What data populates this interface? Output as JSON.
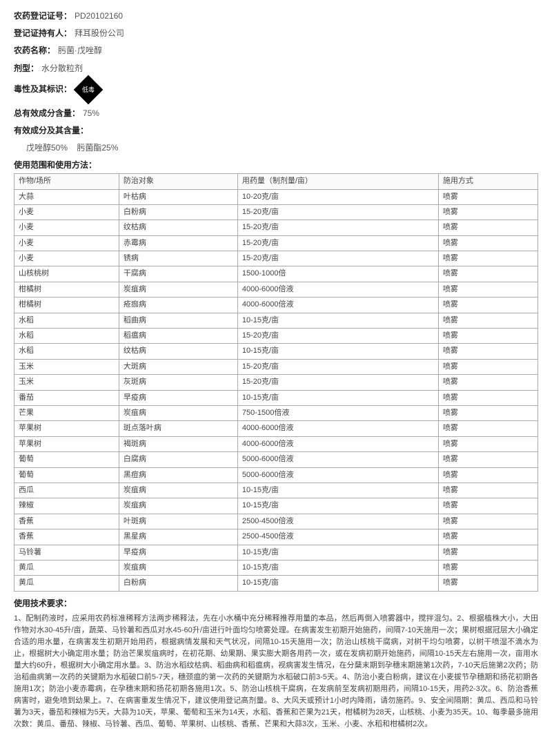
{
  "registration": {
    "reg_no_label": "农药登记证号：",
    "reg_no": "PD20102160",
    "holder_label": "登记证持有人：",
    "holder": "拜耳股份公司",
    "name_label": "农药名称：",
    "name": "肟菌·戊唑醇",
    "form_label": "剂型：",
    "form": "水分散粒剂",
    "toxicity_label": "毒性及其标识：",
    "hazard_text": "低毒",
    "total_label": "总有效成分含量：",
    "total": "75%",
    "ingredients_label": "有效成分及其含量：",
    "ingredient1": "戊唑醇50%",
    "ingredient2": "肟菌酯25%",
    "usage_title": "使用范围和使用方法：",
    "tech_title": "使用技术要求："
  },
  "table": {
    "headers": [
      "作物/场所",
      "防治对象",
      "用药量（制剂量/亩）",
      "施用方式"
    ],
    "rows": [
      [
        "大蒜",
        "叶枯病",
        "10-20克/亩",
        "喷雾"
      ],
      [
        "小麦",
        "白粉病",
        "15-20克/亩",
        "喷雾"
      ],
      [
        "小麦",
        "纹枯病",
        "15-20克/亩",
        "喷雾"
      ],
      [
        "小麦",
        "赤霉病",
        "15-20克/亩",
        "喷雾"
      ],
      [
        "小麦",
        "锈病",
        "15-20克/亩",
        "喷雾"
      ],
      [
        "山核桃树",
        "干腐病",
        "1500-1000倍",
        "喷雾"
      ],
      [
        "柑橘树",
        "炭疽病",
        "4000-6000倍液",
        "喷雾"
      ],
      [
        "柑橘树",
        "疮痂病",
        "4000-6000倍液",
        "喷雾"
      ],
      [
        "水稻",
        "稻曲病",
        "10-15克/亩",
        "喷雾"
      ],
      [
        "水稻",
        "稻瘟病",
        "15-20克/亩",
        "喷雾"
      ],
      [
        "水稻",
        "纹枯病",
        "10-15克/亩",
        "喷雾"
      ],
      [
        "玉米",
        "大斑病",
        "15-20克/亩",
        "喷雾"
      ],
      [
        "玉米",
        "灰斑病",
        "15-20克/亩",
        "喷雾"
      ],
      [
        "番茄",
        "早疫病",
        "10-15克/亩",
        "喷雾"
      ],
      [
        "芒果",
        "炭疽病",
        "750-1500倍液",
        "喷雾"
      ],
      [
        "苹果树",
        "斑点落叶病",
        "4000-6000倍液",
        "喷雾"
      ],
      [
        "苹果树",
        "褐斑病",
        "4000-6000倍液",
        "喷雾"
      ],
      [
        "葡萄",
        "白腐病",
        "5000-6000倍液",
        "喷雾"
      ],
      [
        "葡萄",
        "黑痘病",
        "5000-6000倍液",
        "喷雾"
      ],
      [
        "西瓜",
        "炭疽病",
        "10-15克/亩",
        "喷雾"
      ],
      [
        "辣椒",
        "炭疽病",
        "10-15克/亩",
        "喷雾"
      ],
      [
        "香蕉",
        "叶斑病",
        "2500-4500倍液",
        "喷雾"
      ],
      [
        "香蕉",
        "黑星病",
        "2500-4500倍液",
        "喷雾"
      ],
      [
        "马铃薯",
        "早疫病",
        "10-15克/亩",
        "喷雾"
      ],
      [
        "黄瓜",
        "炭疽病",
        "10-15克/亩",
        "喷雾"
      ],
      [
        "黄瓜",
        "白粉病",
        "10-15克/亩",
        "喷雾"
      ]
    ]
  },
  "tech_req": "1、配制药液时，应采用农药标准稀释方法两步稀释法，先在小水桶中充分稀释推荐用量的本品，然后再倒入喷雾器中，搅拌混匀。2、根据植株大小，大田作物对水30-45升/亩，蔬菜、马铃薯和西瓜对水45-60升/亩进行叶面均匀喷雾处理。在病害发生初期开始施药，间隔7-10天施用一次；果树根据冠层大小确定合适的用水量，在病害发生初期开始用药，根据病情发展和天气状况，间隔10-15天施用一次；防治山核桃干腐病，对树干均匀喷雾，以树干喷湿不滴水为止，根据树大小确定用水量；防治芒果炭疽病时，在初花期、幼果期、果实膨大期各用药一次，或在发病初期开始施药，间隔10-15天左右施用一次，亩用水量大约60升，根据树大小确定用水量。3、防治水稻纹枯病、稻曲病和稻瘟病，视病害发生情况，在分蘖末期到孕穗末期施第1次药，7-10天后施第2次药；防治稻曲病第一次药的关键期为水稻破口前5-7天，穗颈瘟的第一次药的关键期为水稻破口前3-5天。4、防治小麦白粉病，建议在小麦拔节孕穗期和扬花初期各施用1次；防治小麦赤霉病，在孕穗末期和扬花初期各施用1次。5、防治山核桃干腐病，在发病前至发病初期用药，间隔10-15天，用药2-3次。6、防治香蕉病害时，避免喷到幼果上。7、在病害重发生情况下，建议使用登记高剂量。8、大风天或预计1小时内降雨，请勿施药。9、安全间隔期：黄瓜、西瓜和马铃薯为3天，番茄和辣椒为5天，大蒜为10天，苹果、葡萄和玉米为14天，水稻、香蕉和芒果为21天，柑橘树为28天，山核桃、小麦为35天。10、每季最多施用次数：黄瓜、番茄、辣椒、马铃薯、西瓜、葡萄、苹果树、山核桃、香蕉、芒果和大蒜3次，玉米、小麦、水稻和柑橘树2次。"
}
